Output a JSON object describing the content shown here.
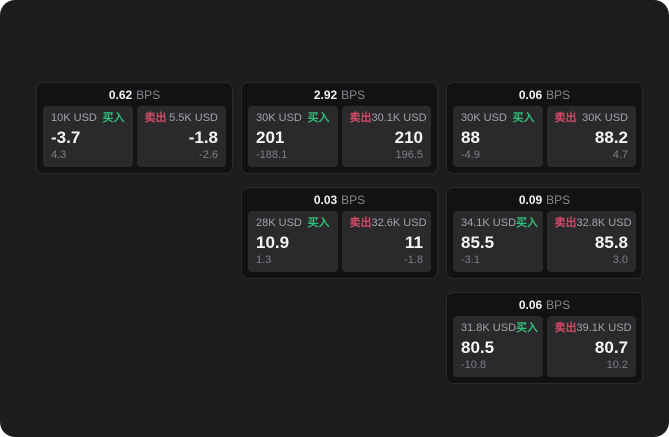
{
  "labels": {
    "bps_unit": "BPS",
    "buy": "买入",
    "sell": "卖出"
  },
  "colors": {
    "page_bg": "#1d1d1f",
    "card_bg": "#121214",
    "panel_bg": "#2a2a2d",
    "buy_accent": "#2fbe7b",
    "sell_accent": "#d14b66",
    "primary_text": "#f5f5f7",
    "muted_text": "#87878c"
  },
  "cards": [
    {
      "bps": "0.62",
      "buy": {
        "amount": "10K USD",
        "price": "-3.7",
        "change": "4.3"
      },
      "sell": {
        "amount": "5.5K USD",
        "price": "-1.8",
        "change": "-2.6"
      }
    },
    {
      "bps": "2.92",
      "buy": {
        "amount": "30K USD",
        "price": "201",
        "change": "-188.1"
      },
      "sell": {
        "amount": "30.1K USD",
        "price": "210",
        "change": "196.5"
      }
    },
    {
      "bps": "0.06",
      "buy": {
        "amount": "30K USD",
        "price": "88",
        "change": "-4.9"
      },
      "sell": {
        "amount": "30K USD",
        "price": "88.2",
        "change": "4.7"
      }
    },
    {
      "bps": "0.03",
      "buy": {
        "amount": "28K USD",
        "price": "10.9",
        "change": "1.3"
      },
      "sell": {
        "amount": "32.6K USD",
        "price": "11",
        "change": "-1.8"
      }
    },
    {
      "bps": "0.09",
      "buy": {
        "amount": "34.1K USD",
        "price": "85.5",
        "change": "-3.1"
      },
      "sell": {
        "amount": "32.8K USD",
        "price": "85.8",
        "change": "3.0"
      }
    },
    {
      "bps": "0.06",
      "buy": {
        "amount": "31.8K USD",
        "price": "80.5",
        "change": "-10.8"
      },
      "sell": {
        "amount": "39.1K USD",
        "price": "80.7",
        "change": "10.2"
      }
    }
  ]
}
